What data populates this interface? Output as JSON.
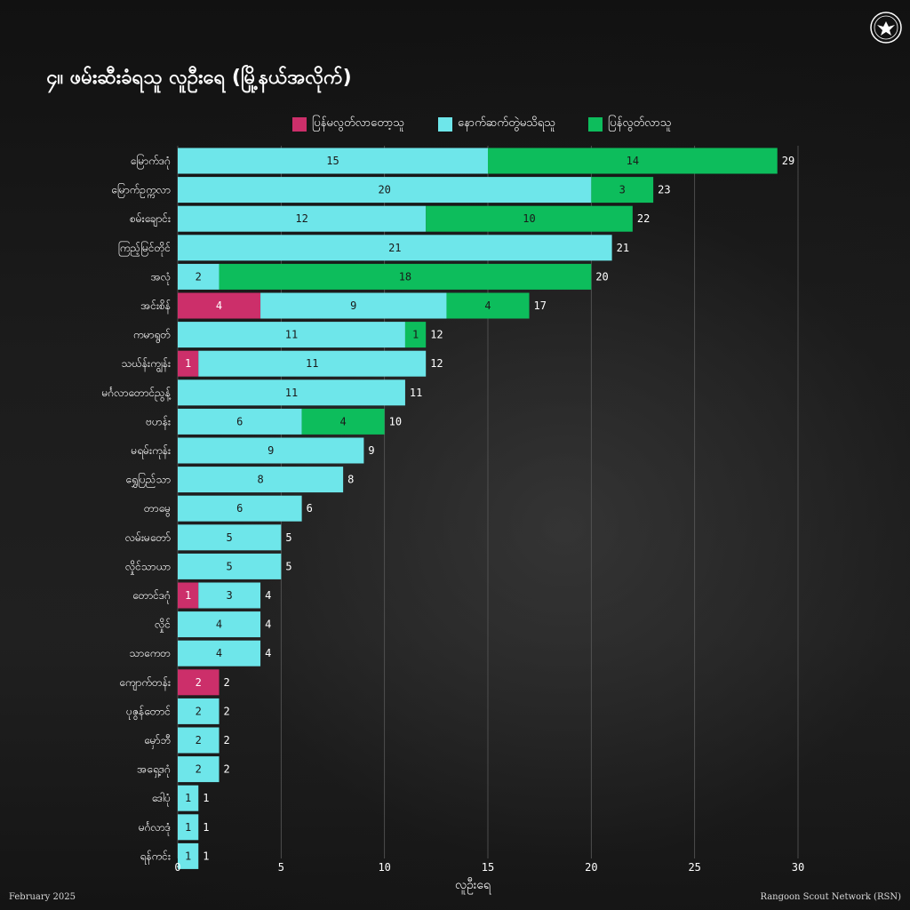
{
  "header": {
    "title": "၄။ ဖမ်းဆီးခံရသူ လူဦးရေ (မြို့နယ်အလိုက်)"
  },
  "footer": {
    "date": "February 2025",
    "source": "Rangoon Scout Network (RSN)"
  },
  "colors": {
    "background": "#151515",
    "series_pink": "#cc2f6a",
    "series_cyan": "#6ee6ea",
    "series_green": "#0dbd5c",
    "grid": "#5a5a5a"
  },
  "chart_data": {
    "type": "bar",
    "orientation": "horizontal",
    "stacked": true,
    "categories": [
      "မြောက်ဒဂုံ",
      "မြောက်ဥက္ကလာ",
      "စမ်းချောင်း",
      "ကြည့်မြင်တိုင်",
      "အလုံ",
      "အင်းစိန်",
      "ကမာရွတ်",
      "သဃ်န်းကျွန်း",
      "မင်္ဂလာတောင်ညွန့်",
      "ဗဟန်း",
      "မရမ်းကုန်း",
      "ရွှေပြည်သာ",
      "တာမွေ",
      "လမ်းမတော်",
      "လှိုင်သာယာ",
      "တောင်ဒဂုံ",
      "လှိုင်",
      "သာကေတ",
      "ကျောက်တန်း",
      "ပုဇွန်တောင်",
      "မှော်ဘီ",
      "အရှေ့ဒဂုံ",
      "ဒေါပုံ",
      "မင်္ဂလာဒုံ",
      "ရန်ကင်း"
    ],
    "series": [
      {
        "name": "ပြန်မလွတ်လာတော့သူ",
        "color": "#cc2f6a",
        "values": [
          0,
          0,
          0,
          0,
          0,
          4,
          0,
          1,
          0,
          0,
          0,
          0,
          0,
          0,
          0,
          1,
          0,
          0,
          2,
          0,
          0,
          0,
          0,
          0,
          0
        ]
      },
      {
        "name": "နောက်ဆက်တွဲမသိရသူ",
        "color": "#6ee6ea",
        "values": [
          15,
          20,
          12,
          21,
          2,
          9,
          11,
          11,
          11,
          6,
          9,
          8,
          6,
          5,
          5,
          3,
          4,
          4,
          0,
          2,
          2,
          2,
          1,
          1,
          1
        ]
      },
      {
        "name": "ပြန်လွတ်လာသူ",
        "color": "#0dbd5c",
        "values": [
          14,
          3,
          10,
          0,
          18,
          4,
          1,
          0,
          0,
          4,
          0,
          0,
          0,
          0,
          0,
          0,
          0,
          0,
          0,
          0,
          0,
          0,
          0,
          0,
          0
        ]
      }
    ],
    "totals": [
      29,
      23,
      22,
      21,
      20,
      17,
      12,
      12,
      11,
      10,
      9,
      8,
      6,
      5,
      5,
      4,
      4,
      4,
      2,
      2,
      2,
      2,
      1,
      1,
      1
    ],
    "xlabel": "လူဦးရေ",
    "ylabel": "",
    "xlim": [
      0,
      30
    ],
    "xticks": [
      0,
      5,
      10,
      15,
      20,
      25,
      30
    ],
    "grid": true,
    "legend_position": "top"
  }
}
